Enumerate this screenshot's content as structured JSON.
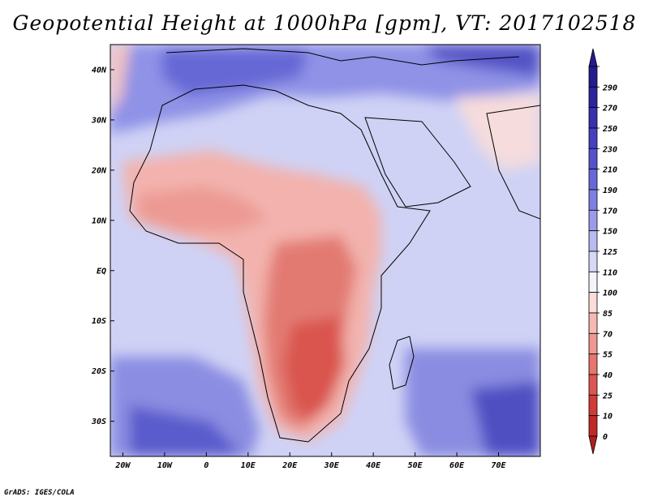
{
  "title": "Geopotential Height at 1000hPa [gpm], VT: 2017102518",
  "credit": "GrADS: IGES/COLA",
  "map": {
    "lon_range": [
      -23,
      80
    ],
    "lat_range": [
      -37,
      45
    ],
    "lat_ticks": [
      {
        "value": 40,
        "label": "40N"
      },
      {
        "value": 30,
        "label": "30N"
      },
      {
        "value": 20,
        "label": "20N"
      },
      {
        "value": 10,
        "label": "10N"
      },
      {
        "value": 0,
        "label": "EQ"
      },
      {
        "value": -10,
        "label": "10S"
      },
      {
        "value": -20,
        "label": "20S"
      },
      {
        "value": -30,
        "label": "30S"
      }
    ],
    "lon_ticks": [
      {
        "value": -20,
        "label": "20W"
      },
      {
        "value": -10,
        "label": "10W"
      },
      {
        "value": 0,
        "label": "0"
      },
      {
        "value": 10,
        "label": "10E"
      },
      {
        "value": 20,
        "label": "20E"
      },
      {
        "value": 30,
        "label": "30E"
      },
      {
        "value": 40,
        "label": "40E"
      },
      {
        "value": 50,
        "label": "50E"
      },
      {
        "value": 60,
        "label": "60E"
      },
      {
        "value": 70,
        "label": "70E"
      }
    ]
  },
  "colorbar": {
    "levels": [
      {
        "label": "290",
        "color": "#241c8c"
      },
      {
        "label": "270",
        "color": "#2c239e"
      },
      {
        "label": "250",
        "color": "#3731b0"
      },
      {
        "label": "230",
        "color": "#4440bf"
      },
      {
        "label": "210",
        "color": "#5553cc"
      },
      {
        "label": "190",
        "color": "#6868d8"
      },
      {
        "label": "170",
        "color": "#7f80e2"
      },
      {
        "label": "150",
        "color": "#9a9ceb"
      },
      {
        "label": "125",
        "color": "#b8baf2"
      },
      {
        "label": "110",
        "color": "#d7d8f7"
      },
      {
        "label": "100",
        "color": "#f4f4fb"
      },
      {
        "label": "85",
        "color": "#fbdcd8"
      },
      {
        "label": "70",
        "color": "#f5bab5"
      },
      {
        "label": "55",
        "color": "#ee9891"
      },
      {
        "label": "40",
        "color": "#e6766f"
      },
      {
        "label": "25",
        "color": "#dd5550"
      },
      {
        "label": "10",
        "color": "#d23a36"
      },
      {
        "label": "0",
        "color": "#c12927"
      }
    ],
    "low_end_color": "#b01e1f"
  }
}
